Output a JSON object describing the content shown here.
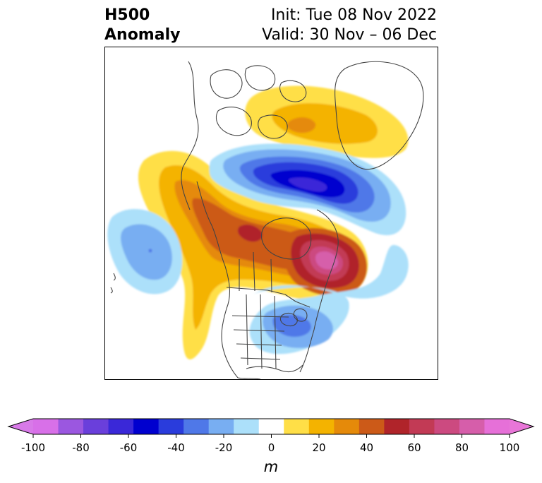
{
  "title": {
    "left_line1": "H500",
    "left_line2": "Anomaly",
    "right_line1": "Init: Tue 08 Nov 2022",
    "right_line2": "Valid: 30 Nov – 06 Dec"
  },
  "colorbar": {
    "unit": "m",
    "min": -100,
    "max": 100,
    "step": 10,
    "extend": "both",
    "tick_values": [
      -100,
      -80,
      -60,
      -40,
      -20,
      0,
      20,
      40,
      60,
      80,
      100
    ],
    "tick_labels": [
      "-100",
      "-80",
      "-60",
      "-40",
      "-20",
      "0",
      "20",
      "40",
      "60",
      "80",
      "100"
    ],
    "colors": [
      "#d870e8",
      "#9b57e0",
      "#6a3fdb",
      "#3a28d8",
      "#0000cf",
      "#2a3cdc",
      "#4f78e8",
      "#78aef2",
      "#ace0fa",
      "#ffffff",
      "#ffdf47",
      "#f4b300",
      "#e58a0a",
      "#cc5a18",
      "#b0242a",
      "#c23a55",
      "#cc4a80",
      "#d65eaa",
      "#e670d8"
    ],
    "under_color": "#d87ae8",
    "over_color": "#e876d8"
  },
  "map": {
    "region": "North America",
    "features": [
      {
        "name": "positive anomaly north of Greenland",
        "peak": 30
      },
      {
        "name": "negative anomaly over Canadian Arctic",
        "peak": -70
      },
      {
        "name": "positive anomaly over Alaska and Canada",
        "peak": 60
      },
      {
        "name": "positive anomaly over Hudson Bay / Labrador",
        "peak": 90
      },
      {
        "name": "negative anomaly over northeast Pacific",
        "peak": -40
      },
      {
        "name": "negative anomaly over eastern United States",
        "peak": -40
      }
    ]
  }
}
